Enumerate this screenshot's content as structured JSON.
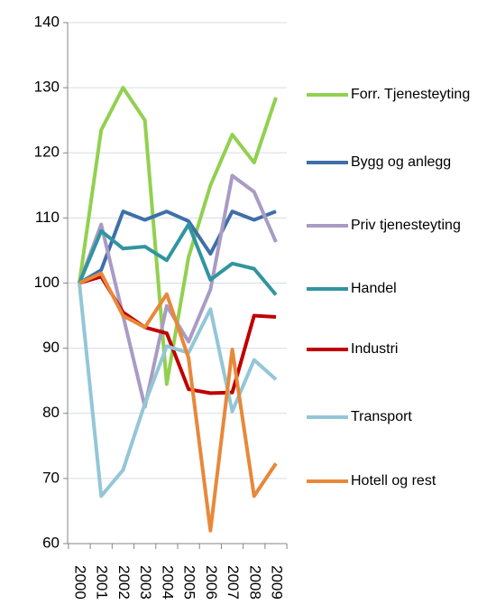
{
  "chart_data": {
    "type": "line",
    "categories": [
      "2000",
      "2001",
      "2002",
      "2003",
      "2004",
      "2005",
      "2006",
      "2007",
      "2008",
      "2009"
    ],
    "ylim": [
      60,
      140
    ],
    "yticks": [
      60,
      70,
      80,
      90,
      100,
      110,
      120,
      130,
      140
    ],
    "grid": true,
    "series": [
      {
        "name": "Forr. Tjenesteyting",
        "color": "#92d050",
        "values": [
          100,
          123.5,
          130,
          125,
          84.5,
          104,
          115,
          122.8,
          118.5,
          128.5
        ]
      },
      {
        "name": "Bygg og anlegg",
        "color": "#3f6fa8",
        "values": [
          100,
          102,
          111,
          109.7,
          111,
          109.5,
          104.5,
          111,
          109.7,
          111
        ]
      },
      {
        "name": "Priv tjenesteyting",
        "color": "#a99bc4",
        "values": [
          100,
          109,
          95,
          81,
          96.5,
          91,
          99,
          116.5,
          114,
          106.3
        ]
      },
      {
        "name": "Handel",
        "color": "#31959f",
        "values": [
          100,
          108,
          105.3,
          105.6,
          103.5,
          109,
          100.5,
          103,
          102.2,
          98.2
        ]
      },
      {
        "name": "Industri",
        "color": "#c00000",
        "values": [
          100,
          101,
          95.5,
          93.2,
          92.3,
          83.7,
          83.1,
          83.2,
          95,
          94.8
        ]
      },
      {
        "name": "Transport",
        "color": "#93c6d8",
        "values": [
          100,
          67.3,
          71.3,
          81.5,
          90.3,
          89.3,
          96,
          80.3,
          88.2,
          85.2
        ]
      },
      {
        "name": "Hotell og rest",
        "color": "#e8883a",
        "values": [
          100,
          101.5,
          95,
          93.2,
          98.3,
          88.5,
          62,
          89.8,
          67.3,
          72.3
        ]
      }
    ]
  }
}
